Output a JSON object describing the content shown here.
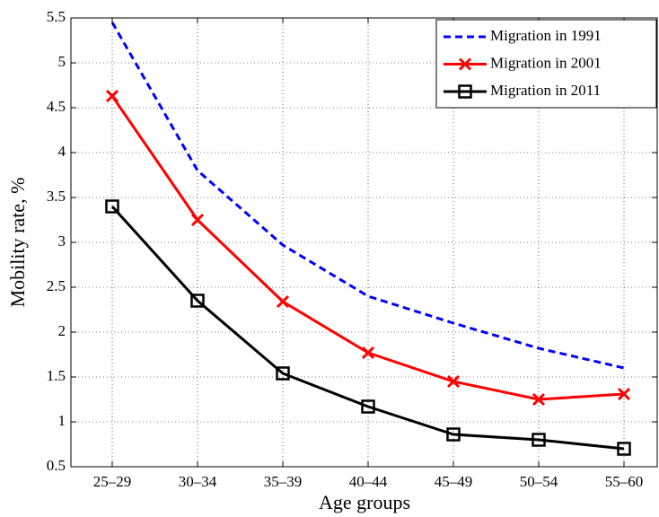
{
  "chart_data": {
    "type": "line",
    "x_label": "Age groups",
    "y_label": "Mobility rate, %",
    "categories": [
      "25–29",
      "30–34",
      "35–39",
      "40–44",
      "45–49",
      "50–54",
      "55–60"
    ],
    "series": [
      {
        "name": "Migration in 1991",
        "color": "#0000ff",
        "linestyle": "dashed",
        "marker": "none",
        "values": [
          5.45,
          3.8,
          2.97,
          2.4,
          2.1,
          1.82,
          1.6
        ]
      },
      {
        "name": "Migration in 2001",
        "color": "#ff0000",
        "linestyle": "solid",
        "marker": "x",
        "values": [
          4.63,
          3.25,
          2.34,
          1.77,
          1.45,
          1.25,
          1.31
        ]
      },
      {
        "name": "Migration in 2011",
        "color": "#000000",
        "linestyle": "solid",
        "marker": "square",
        "values": [
          3.4,
          2.35,
          1.54,
          1.17,
          0.86,
          0.8,
          0.7
        ]
      }
    ],
    "ylim": [
      0.5,
      5.5
    ],
    "yticks": [
      0.5,
      1,
      1.5,
      2,
      2.5,
      3,
      3.5,
      4,
      4.5,
      5,
      5.5
    ],
    "grid": true,
    "legend": "upper right"
  }
}
